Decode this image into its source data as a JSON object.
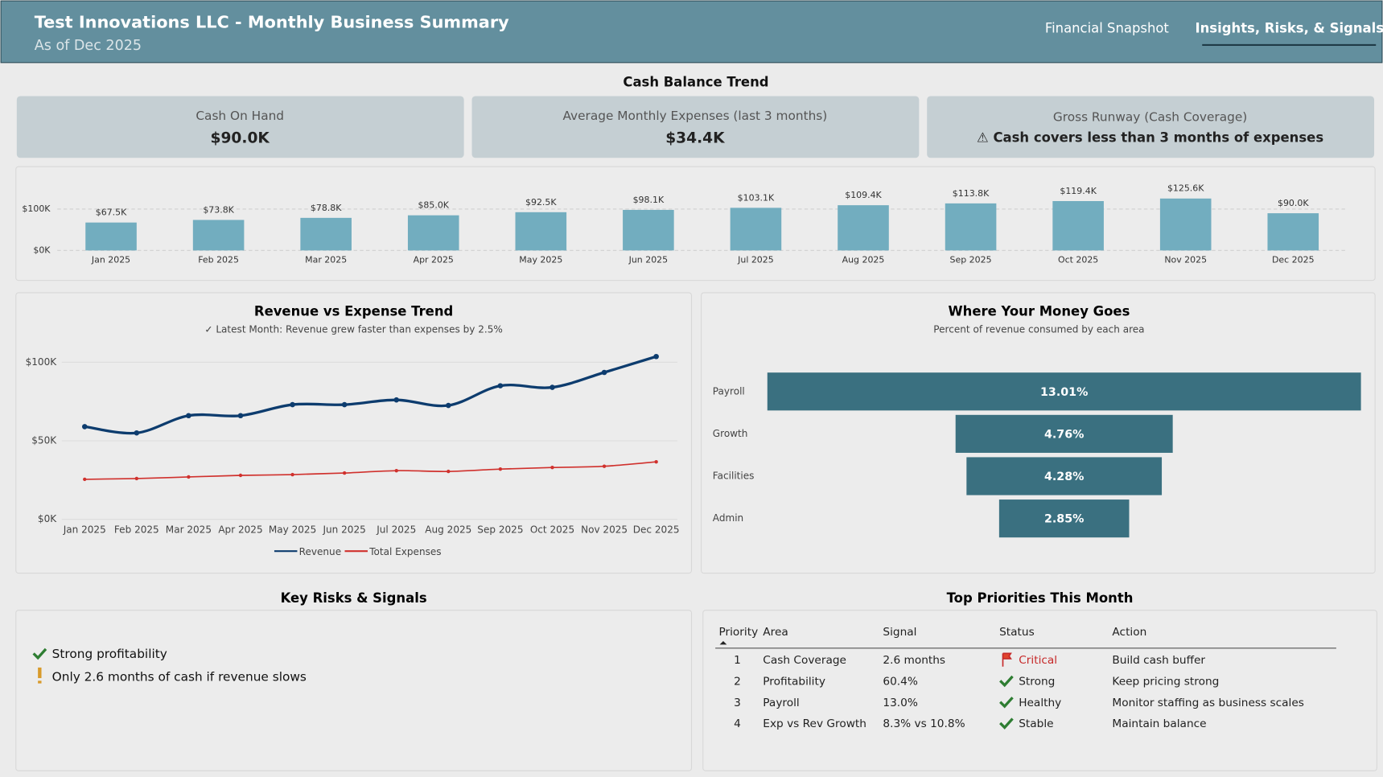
{
  "header": {
    "title": "Test Innovations LLC - Monthly Business Summary",
    "subtitle": "As of Dec 2025"
  },
  "nav": [
    "Financial Snapshot",
    "Insights, Risks, & Signals"
  ],
  "section_title": "Cash Balance Trend",
  "kpis": [
    {
      "label": "Cash On Hand",
      "value": "$90.0K"
    },
    {
      "label": "Average Monthly Expenses (last 3 months)",
      "value": "$34.4K"
    },
    {
      "label": "Gross Runway (Cash Coverage)",
      "value": "⚠ Cash covers less than 3 months of expenses"
    }
  ],
  "chart_data": [
    {
      "type": "bar",
      "categories": [
        "Jan 2025",
        "Feb 2025",
        "Mar 2025",
        "Apr 2025",
        "May 2025",
        "Jun 2025",
        "Jul 2025",
        "Aug 2025",
        "Sep 2025",
        "Oct 2025",
        "Nov 2025",
        "Dec 2025"
      ],
      "values": [
        67.5,
        73.8,
        78.8,
        85.0,
        92.5,
        98.1,
        103.1,
        109.4,
        113.8,
        119.4,
        125.6,
        90.0
      ],
      "value_labels": [
        "$67.5K",
        "$73.8K",
        "$78.8K",
        "$85.0K",
        "$92.5K",
        "$98.1K",
        "$103.1K",
        "$109.4K",
        "$113.8K",
        "$119.4K",
        "$125.6K",
        "$90.0K"
      ],
      "color": "#72adbf",
      "ylim": [
        0,
        160
      ],
      "yticks": [
        {
          "value": 0,
          "label": "$0K"
        },
        {
          "value": 100,
          "label": "$100K"
        }
      ],
      "grid": true
    },
    {
      "type": "line",
      "title": "Revenue vs Expense Trend",
      "subtitle": "✓ Latest Month: Revenue grew faster than expenses by 2.5%",
      "categories": [
        "Jan 2025",
        "Feb 2025",
        "Mar 2025",
        "Apr 2025",
        "May 2025",
        "Jun 2025",
        "Jul 2025",
        "Aug 2025",
        "Sep 2025",
        "Oct 2025",
        "Nov 2025",
        "Dec 2025"
      ],
      "series": [
        {
          "name": "Revenue",
          "color": "#0d3c6e",
          "values": [
            59,
            55,
            66,
            66,
            73,
            73,
            76,
            72.5,
            85,
            84,
            93.5,
            103.6
          ]
        },
        {
          "name": "Total Expenses",
          "color": "#d0312d",
          "values": [
            25.5,
            26,
            27,
            28,
            28.5,
            29.5,
            31,
            30.5,
            32,
            33,
            33.8,
            36.6
          ]
        }
      ],
      "ylim": [
        0,
        115
      ],
      "yticks": [
        {
          "value": 0,
          "label": "$0K"
        },
        {
          "value": 50,
          "label": "$50K"
        },
        {
          "value": 100,
          "label": "$100K"
        }
      ],
      "grid": true,
      "legend": "bottom"
    },
    {
      "type": "funnel",
      "title": "Where Your Money Goes",
      "subtitle": "Percent of revenue consumed by each area",
      "categories": [
        "Payroll",
        "Growth",
        "Facilities",
        "Admin"
      ],
      "values": [
        13.01,
        4.76,
        4.28,
        2.85
      ],
      "value_labels": [
        "13.01%",
        "4.76%",
        "4.28%",
        "2.85%"
      ],
      "color": "#3a7080"
    }
  ],
  "risks": {
    "title": "Key Risks & Signals",
    "items": [
      "Strong profitability",
      "Only 2.6 months of cash if revenue slows"
    ]
  },
  "priorities": {
    "title": "Top Priorities This Month",
    "columns": [
      "Priority",
      "Area",
      "Signal",
      "Status",
      "Action"
    ],
    "rows": [
      [
        1,
        "Cash Coverage",
        "2.6 months",
        "Critical",
        "Build cash buffer"
      ],
      [
        2,
        "Profitability",
        "60.4%",
        "Strong",
        "Keep pricing strong"
      ],
      [
        3,
        "Payroll",
        "13.0%",
        "Healthy",
        "Monitor staffing as business scales"
      ],
      [
        4,
        "Exp vs Rev Growth",
        "8.3% vs 10.8%",
        "Stable",
        "Maintain balance"
      ]
    ]
  }
}
